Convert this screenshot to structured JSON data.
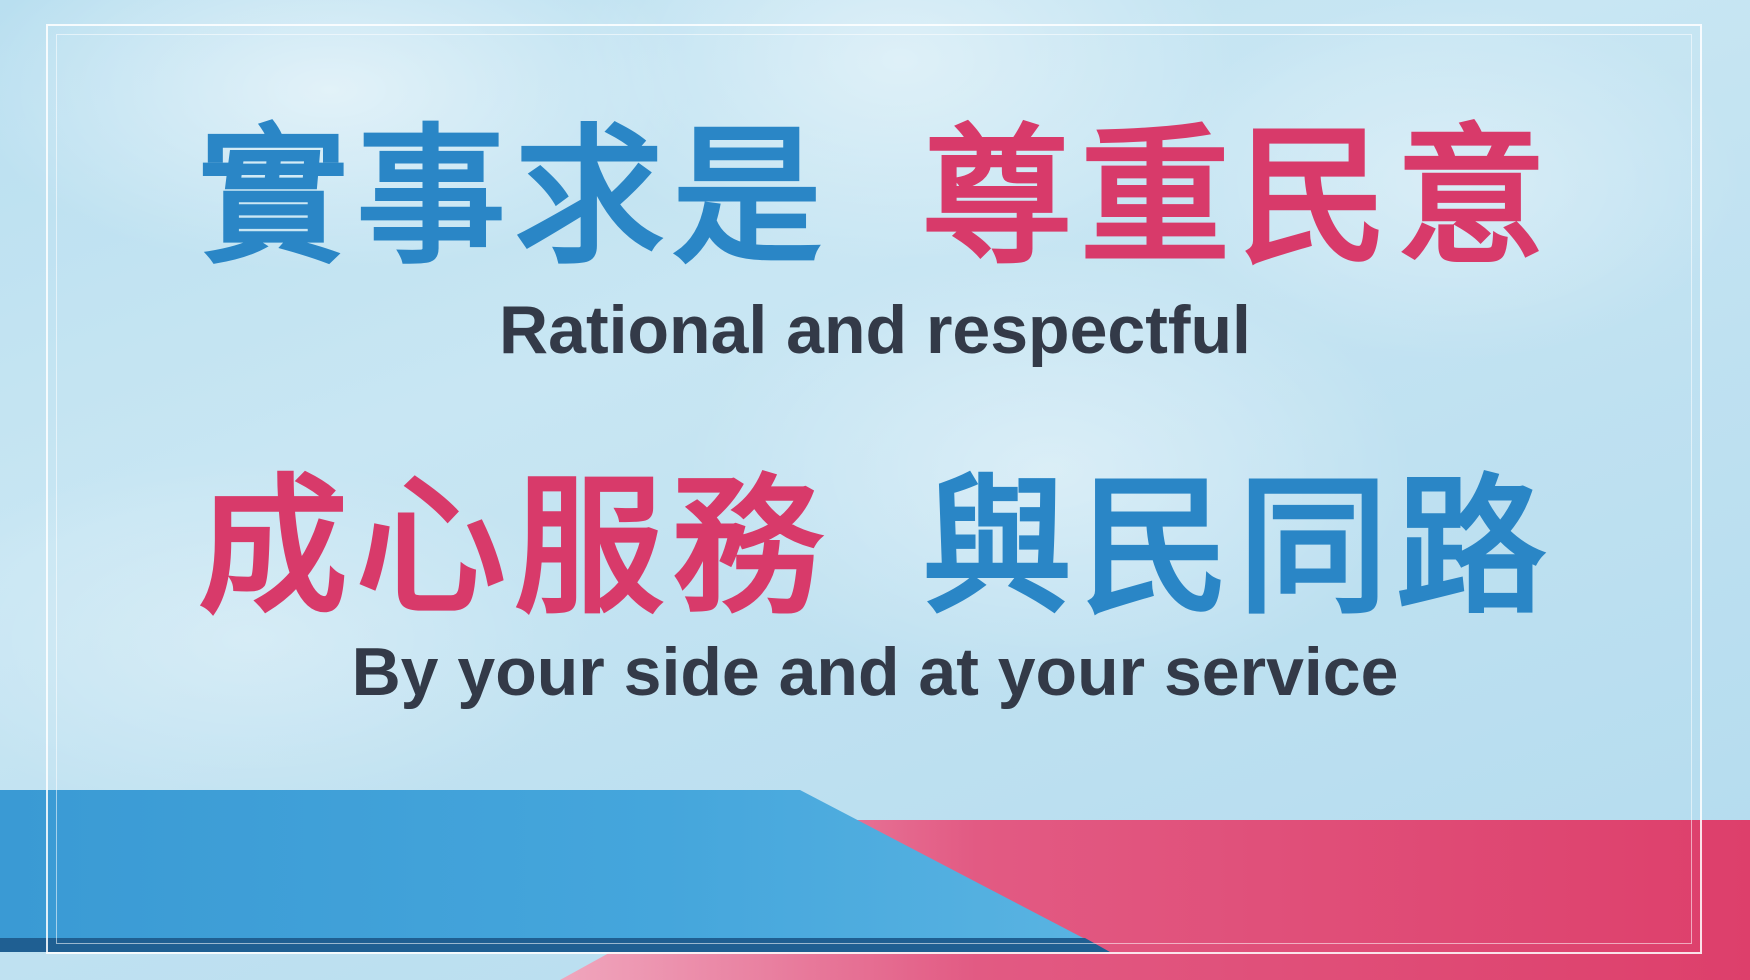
{
  "lines": {
    "line1_left": "實事求是",
    "line1_right": "尊重民意",
    "line1_english": "Rational and respectful",
    "line2_left": "成心服務",
    "line2_right": "與民同路",
    "line2_english": "By your side and at your service"
  },
  "colors": {
    "blue": "#2a86c6",
    "red": "#d83a6a",
    "english_text": "#333a48",
    "band_blue": "#3b9fd6",
    "band_red": "#e0507c"
  }
}
